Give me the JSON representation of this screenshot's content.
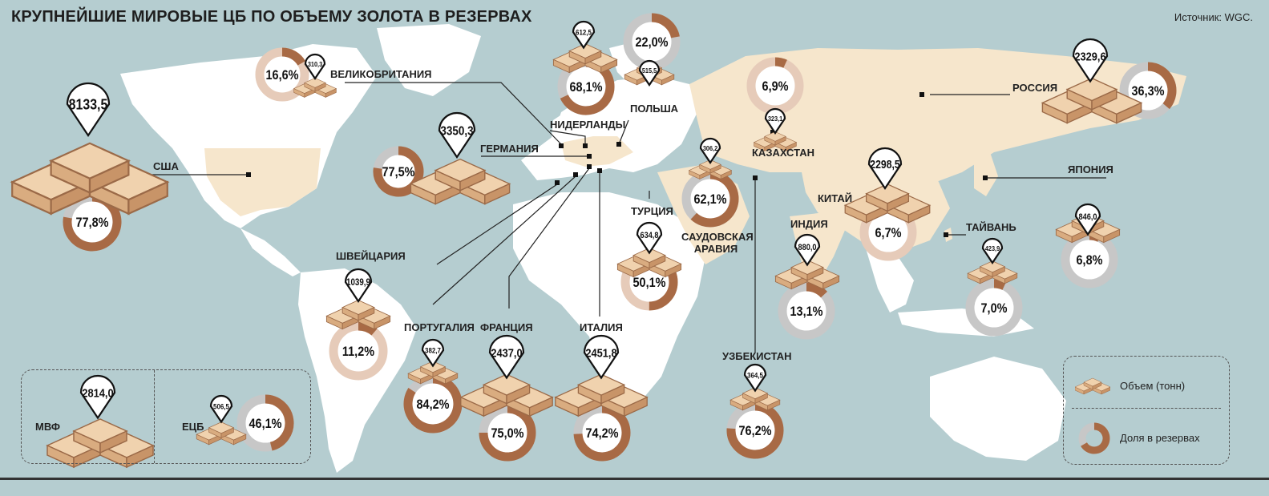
{
  "title": "КРУПНЕЙШИЕ МИРОВЫЕ ЦБ ПО ОБЪЕМУ ЗОЛОТА В РЕЗЕРВАХ",
  "source": "Источник: WGC.",
  "colors": {
    "sea": "#b5cdd0",
    "land": "#ffffff",
    "highlight": "#f6e6cc",
    "share": "#a86a45",
    "ring_rest_gray": "#c7c7c7",
    "ring_rest_pink": "#e6cbb9",
    "gold_bar": "#dfb88f"
  },
  "legend": {
    "volume_label": "Объем (тонн)",
    "share_label": "Доля в резервах"
  },
  "countries": [
    {
      "id": "usa",
      "name": "США",
      "tonnes": "8133,5",
      "share": "77,8%",
      "share_value": 77.8
    },
    {
      "id": "germany",
      "name": "ГЕРМАНИЯ",
      "tonnes": "3350,3",
      "share": "77,5%",
      "share_value": 77.5
    },
    {
      "id": "italy",
      "name": "ИТАЛИЯ",
      "tonnes": "2451,8",
      "share": "74,2%",
      "share_value": 74.2
    },
    {
      "id": "france",
      "name": "ФРАНЦИЯ",
      "tonnes": "2437,0",
      "share": "75,0%",
      "share_value": 75.0
    },
    {
      "id": "russia",
      "name": "РОССИЯ",
      "tonnes": "2329,6",
      "share": "36,3%",
      "share_value": 36.3
    },
    {
      "id": "china",
      "name": "КИТАЙ",
      "tonnes": "2298,5",
      "share": "6,7%",
      "share_value": 6.7
    },
    {
      "id": "switzerland",
      "name": "ШВЕЙЦАРИЯ",
      "tonnes": "1039,9",
      "share": "11,2%",
      "share_value": 11.2
    },
    {
      "id": "india",
      "name": "ИНДИЯ",
      "tonnes": "880,0",
      "share": "13,1%",
      "share_value": 13.1
    },
    {
      "id": "japan",
      "name": "ЯПОНИЯ",
      "tonnes": "846,0",
      "share": "6,8%",
      "share_value": 6.8
    },
    {
      "id": "turkey",
      "name": "ТУРЦИЯ",
      "tonnes": "634,8",
      "share": "50,1%",
      "share_value": 50.1
    },
    {
      "id": "netherlands",
      "name": "НИДЕРЛАНДЫ",
      "tonnes": "612,5",
      "share": "68,1%",
      "share_value": 68.1
    },
    {
      "id": "poland",
      "name": "ПОЛЬША",
      "tonnes": "515,5",
      "share": "22,0%",
      "share_value": 22.0
    },
    {
      "id": "taiwan",
      "name": "ТАЙВАНЬ",
      "tonnes": "423,9",
      "share": "7,0%",
      "share_value": 7.0
    },
    {
      "id": "portugal",
      "name": "ПОРТУГАЛИЯ",
      "tonnes": "382,7",
      "share": "84,2%",
      "share_value": 84.2
    },
    {
      "id": "uzbekistan",
      "name": "УЗБЕКИСТАН",
      "tonnes": "364,5",
      "share": "76,2%",
      "share_value": 76.2
    },
    {
      "id": "kazakhstan",
      "name": "КАЗАХСТАН",
      "tonnes": "323,1",
      "share": "6,9%",
      "share_value": 6.9
    },
    {
      "id": "uk",
      "name": "ВЕЛИКОБРИТАНИЯ",
      "tonnes": "310,3",
      "share": "16,6%",
      "share_value": 16.6
    },
    {
      "id": "saudi",
      "name": "САУДОВСКАЯ АРАВИЯ",
      "tonnes": "306,2",
      "share": "62,1%",
      "share_value": 62.1
    },
    {
      "id": "imf",
      "name": "МВФ",
      "tonnes": "2814,0",
      "share": "",
      "share_value": null
    },
    {
      "id": "ecb",
      "name": "ЕЦБ",
      "tonnes": "506,5",
      "share": "46,1%",
      "share_value": 46.1
    }
  ]
}
